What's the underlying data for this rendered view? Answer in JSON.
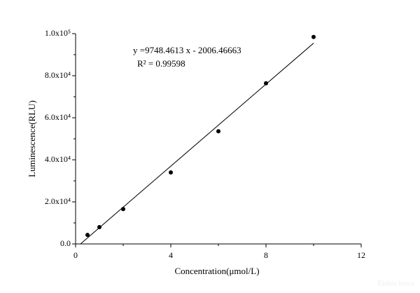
{
  "chart_data": {
    "type": "scatter",
    "x_label": "Concentration(μmol/L)",
    "y_label": "Luminescence(RLU)",
    "annotations": [
      "y =9748.4613 x - 2006.46663",
      "R² = 0.99598"
    ],
    "watermark": "Elabscience",
    "series": [
      {
        "mode": "markers",
        "color": "#000000",
        "x": [
          0.5,
          1,
          2,
          4,
          6,
          8,
          10
        ],
        "values": [
          4300,
          8000,
          16600,
          34000,
          53600,
          76400,
          98400
        ]
      },
      {
        "mode": "line",
        "color": "#000000",
        "x": [
          0.21,
          10
        ],
        "values": [
          41,
          95478
        ]
      }
    ],
    "xlim": [
      0,
      12
    ],
    "xticks": [
      0,
      4,
      8,
      12
    ],
    "xminorticks": [
      2,
      6,
      10
    ],
    "ylim": [
      0,
      100000
    ],
    "yticks": [
      {
        "value": 0,
        "label": "0.0"
      },
      {
        "value": 20000,
        "label": "2.0x10⁴"
      },
      {
        "value": 40000,
        "label": "4.0x10⁴"
      },
      {
        "value": 60000,
        "label": "6.0x10⁴"
      },
      {
        "value": 80000,
        "label": "8.0x10⁴"
      },
      {
        "value": 100000,
        "label": "1.0x10⁵"
      }
    ],
    "yminorticks": [
      10000,
      30000,
      50000,
      70000,
      90000
    ]
  }
}
